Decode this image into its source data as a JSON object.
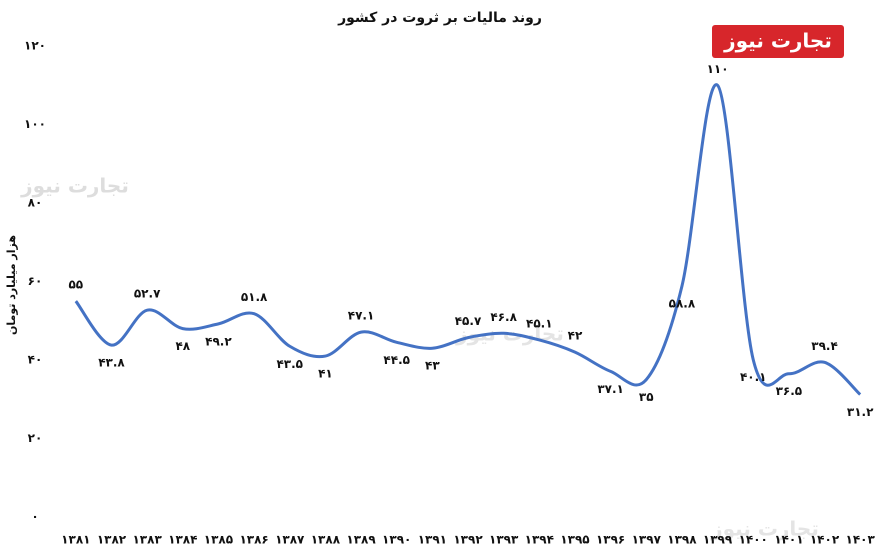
{
  "chart_data": {
    "type": "line",
    "title": "روند مالیات بر ثروت در کشور",
    "y_label": "هزار میلیارد تومان",
    "watermark": "تجارت نیوز",
    "categories": [
      "۱۳۸۱",
      "۱۳۸۲",
      "۱۳۸۳",
      "۱۳۸۴",
      "۱۳۸۵",
      "۱۳۸۶",
      "۱۳۸۷",
      "۱۳۸۸",
      "۱۳۸۹",
      "۱۳۹۰",
      "۱۳۹۱",
      "۱۳۹۲",
      "۱۳۹۳",
      "۱۳۹۴",
      "۱۳۹۵",
      "۱۳۹۶",
      "۱۳۹۷",
      "۱۳۹۸",
      "۱۳۹۹",
      "۱۴۰۰",
      "۱۴۰۱",
      "۱۴۰۲",
      "۱۴۰۳"
    ],
    "values": [
      55,
      43.8,
      52.7,
      48,
      49.2,
      51.8,
      43.5,
      41,
      47.1,
      44.5,
      43,
      45.7,
      46.8,
      45.1,
      42,
      37.1,
      35,
      58.8,
      110,
      40.1,
      36.5,
      39.4,
      31.2
    ],
    "value_labels": [
      "۵۵",
      "۴۳.۸",
      "۵۲.۷",
      "۴۸",
      "۴۹.۲",
      "۵۱.۸",
      "۴۳.۵",
      "۴۱",
      "۴۷.۱",
      "۴۴.۵",
      "۴۳",
      "۴۵.۷",
      "۴۶.۸",
      "۴۵.۱",
      "۴۲",
      "۳۷.۱",
      "۳۵",
      "۵۸.۸",
      "۱۱۰",
      "۴۰.۱",
      "۳۶.۵",
      "۳۹.۴",
      "۳۱.۲"
    ],
    "color": "#4472c4",
    "ylim": [
      0,
      120
    ],
    "yticks": [
      {
        "value": 0,
        "label": "۰"
      },
      {
        "value": 20,
        "label": "۲۰"
      },
      {
        "value": 40,
        "label": "۴۰"
      },
      {
        "value": 60,
        "label": "۶۰"
      },
      {
        "value": 80,
        "label": "۸۰"
      },
      {
        "value": 100,
        "label": "۱۰۰"
      },
      {
        "value": 120,
        "label": "۱۲۰"
      }
    ],
    "grid": false
  }
}
